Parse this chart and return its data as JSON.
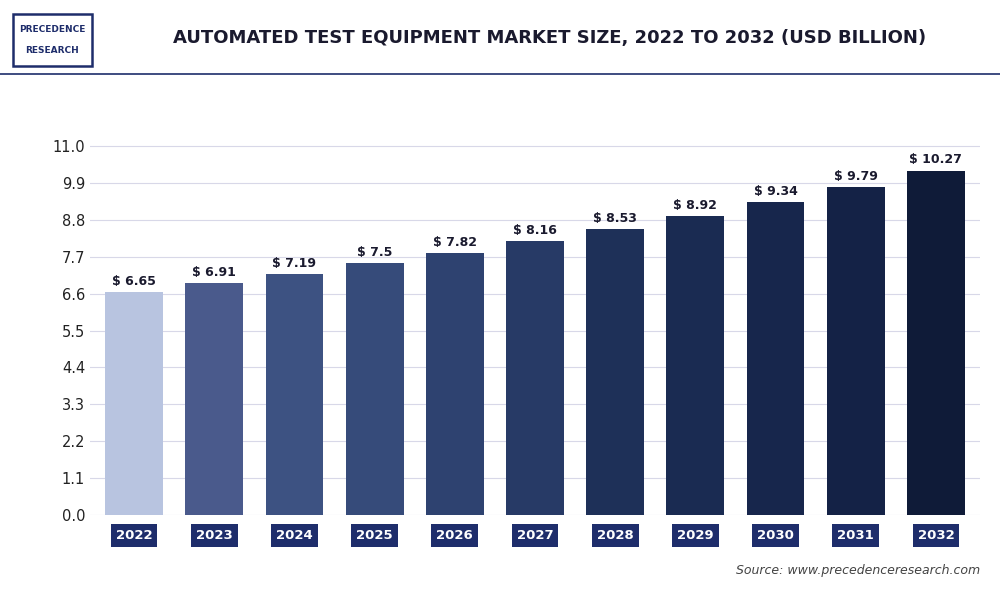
{
  "title": "AUTOMATED TEST EQUIPMENT MARKET SIZE, 2022 TO 2032 (USD BILLION)",
  "categories": [
    "2022",
    "2023",
    "2024",
    "2025",
    "2026",
    "2027",
    "2028",
    "2029",
    "2030",
    "2031",
    "2032"
  ],
  "values": [
    6.65,
    6.91,
    7.19,
    7.5,
    7.82,
    8.16,
    8.53,
    8.92,
    9.34,
    9.79,
    10.27
  ],
  "bar_colors": [
    "#b8c4e0",
    "#4a5a8c",
    "#3d5282",
    "#364b7a",
    "#2e4270",
    "#273a66",
    "#1e3058",
    "#1a2b52",
    "#17264c",
    "#142246",
    "#0f1b38"
  ],
  "labels": [
    "$ 6.65",
    "$ 6.91",
    "$ 7.19",
    "$ 7.5",
    "$ 7.82",
    "$ 8.16",
    "$ 8.53",
    "$ 8.92",
    "$ 9.34",
    "$ 9.79",
    "$ 10.27"
  ],
  "yticks": [
    0,
    1.1,
    2.2,
    3.3,
    4.4,
    5.5,
    6.6,
    7.7,
    8.8,
    9.9,
    11
  ],
  "ylim": [
    0,
    12.0
  ],
  "source_text": "Source: www.precedenceresearch.com",
  "bg_color": "#ffffff",
  "plot_bg_color": "#ffffff",
  "title_color": "#1a1a2e",
  "bar_label_color": "#1a1a2e",
  "xtick_bg_color": "#1e2d6b",
  "xtick_text_color": "#ffffff",
  "grid_color": "#d8d8e8",
  "separator_color": "#1e2d6b",
  "title_fontsize": 13,
  "bar_label_fontsize": 9,
  "ytick_fontsize": 10.5,
  "xtick_fontsize": 9.5,
  "source_fontsize": 9,
  "bar_width": 0.72
}
